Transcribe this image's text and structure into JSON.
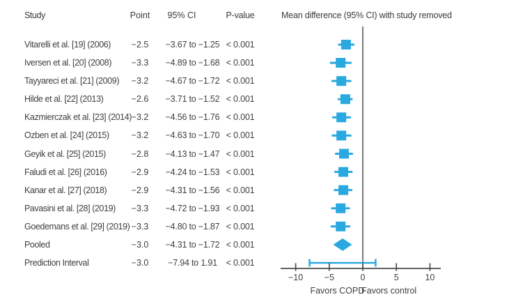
{
  "chart_data": {
    "type": "scatter",
    "variant": "forest-plot-leave-one-out-sensitivity",
    "title": "Mean difference (95% CI) with study removed",
    "columns": [
      "Study",
      "Point",
      "95% CI",
      "P-value"
    ],
    "xticks": [
      -10,
      -5,
      0,
      5,
      10
    ],
    "xtick_labels": [
      "−10",
      "−5",
      "0",
      "5",
      "10"
    ],
    "xlim": [
      -12.2,
      11.6
    ],
    "zero_line": 0,
    "grid": false,
    "footer_left": "Favors COPD",
    "footer_right": "Favors control",
    "marker_color": "#29a9e0",
    "line_color": "#4a4b4d",
    "text_color": "#3e3f41",
    "rows": [
      {
        "study": "Vitarelli et al. [19] (2006)",
        "point": -2.5,
        "ci_low": -3.67,
        "ci_high": -1.25,
        "point_label": "−2.5",
        "ci_label": "−3.67 to −1.25",
        "p_label": "< 0.001",
        "marker": "square"
      },
      {
        "study": "Iversen et al. [20] (2008)",
        "point": -3.3,
        "ci_low": -4.89,
        "ci_high": -1.68,
        "point_label": "−3.3",
        "ci_label": "−4.89 to −1.68",
        "p_label": "< 0.001",
        "marker": "square"
      },
      {
        "study": "Tayyareci et al. [21] (2009)",
        "point": -3.2,
        "ci_low": -4.67,
        "ci_high": -1.72,
        "point_label": "−3.2",
        "ci_label": "−4.67 to −1.72",
        "p_label": "< 0.001",
        "marker": "square"
      },
      {
        "study": "Hilde et al. [22] (2013)",
        "point": -2.6,
        "ci_low": -3.71,
        "ci_high": -1.52,
        "point_label": "−2.6",
        "ci_label": "−3.71 to −1.52",
        "p_label": "< 0.001",
        "marker": "square"
      },
      {
        "study": "Kazmierczak et al. [23] (2014)",
        "point": -3.2,
        "ci_low": -4.56,
        "ci_high": -1.76,
        "point_label": "−3.2",
        "ci_label": "−4.56 to −1.76",
        "p_label": "< 0.001",
        "marker": "square"
      },
      {
        "study": "Ozben et al. [24] (2015)",
        "point": -3.2,
        "ci_low": -4.63,
        "ci_high": -1.7,
        "point_label": "−3.2",
        "ci_label": "−4.63 to −1.70",
        "p_label": "< 0.001",
        "marker": "square"
      },
      {
        "study": "Geyik et al. [25] (2015)",
        "point": -2.8,
        "ci_low": -4.13,
        "ci_high": -1.47,
        "point_label": "−2.8",
        "ci_label": "−4.13 to −1.47",
        "p_label": "< 0.001",
        "marker": "square"
      },
      {
        "study": "Faludi et al. [26] (2016)",
        "point": -2.9,
        "ci_low": -4.24,
        "ci_high": -1.53,
        "point_label": "−2.9",
        "ci_label": "−4.24 to −1.53",
        "p_label": "< 0.001",
        "marker": "square"
      },
      {
        "study": "Kanar et al. [27] (2018)",
        "point": -2.9,
        "ci_low": -4.31,
        "ci_high": -1.56,
        "point_label": "−2.9",
        "ci_label": "−4.31 to −1.56",
        "p_label": "< 0.001",
        "marker": "square"
      },
      {
        "study": "Pavasini et al. [28] (2019)",
        "point": -3.3,
        "ci_low": -4.72,
        "ci_high": -1.93,
        "point_label": "−3.3",
        "ci_label": "−4.72 to −1.93",
        "p_label": "< 0.001",
        "marker": "square"
      },
      {
        "study": "Goedemans et al. [29] (2019)",
        "point": -3.3,
        "ci_low": -4.8,
        "ci_high": -1.87,
        "point_label": "−3.3",
        "ci_label": "−4.80 to −1.87",
        "p_label": "< 0.001",
        "marker": "square"
      },
      {
        "study": "Pooled",
        "point": -3.0,
        "ci_low": -4.31,
        "ci_high": -1.72,
        "point_label": "−3.0",
        "ci_label": "−4.31 to −1.72",
        "p_label": "< 0.001",
        "marker": "diamond"
      },
      {
        "study": "Prediction Interval",
        "point": -3.0,
        "ci_low": -7.94,
        "ci_high": 1.91,
        "point_label": "−3.0",
        "ci_label": "−7.94 to 1.91",
        "p_label": "< 0.001",
        "marker": "interval"
      }
    ]
  }
}
